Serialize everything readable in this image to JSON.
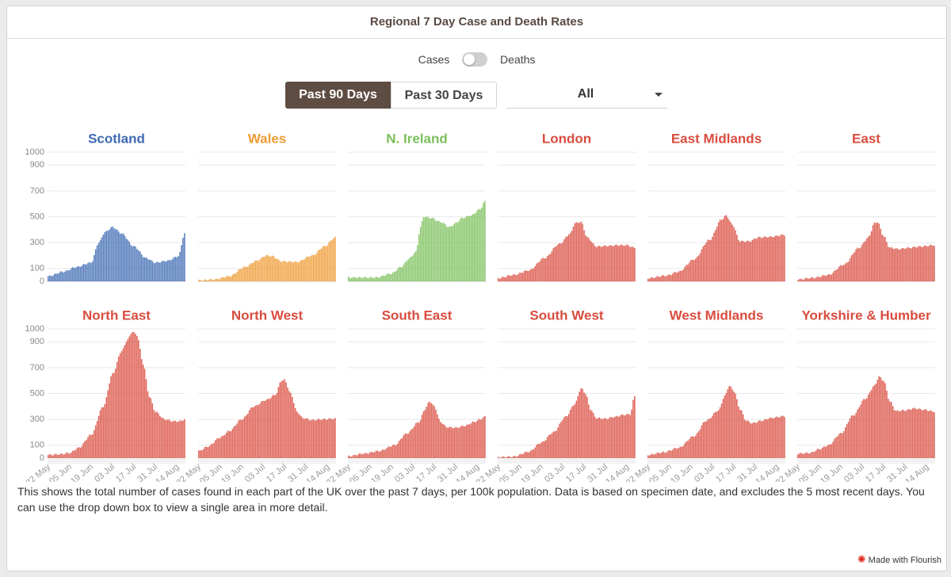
{
  "title": "Regional 7 Day Case and Death Rates",
  "toggle": {
    "left_label": "Cases",
    "right_label": "Deaths"
  },
  "buttons": {
    "active": "Past 90 Days",
    "inactive": "Past 30 Days"
  },
  "dropdown": {
    "value": "All"
  },
  "description": "This shows the total number of cases found in each part of the UK over the past 7 days, per 100k population. Data is based on specimen date, and excludes the 5 most recent days. You can use the drop down box to view a single area in more detail.",
  "footer": "Made with Flourish",
  "chart_data": {
    "type": "bar",
    "ylim": [
      0,
      1000
    ],
    "y_ticks": [
      0,
      100,
      300,
      500,
      700,
      900,
      1000
    ],
    "x_ticks": [
      "22 May",
      "05 Jun",
      "19 Jun",
      "03 Jul",
      "17 Jul",
      "31 Jul",
      "14 Aug"
    ],
    "x_tick_days": [
      0,
      14,
      28,
      42,
      56,
      70,
      84
    ],
    "n_days": 90,
    "panels": [
      {
        "name": "Scotland",
        "color": "#3d6ab3",
        "keypoints": [
          [
            0,
            40
          ],
          [
            10,
            75
          ],
          [
            18,
            110
          ],
          [
            28,
            145
          ],
          [
            33,
            300
          ],
          [
            37,
            380
          ],
          [
            42,
            420
          ],
          [
            48,
            370
          ],
          [
            56,
            270
          ],
          [
            64,
            180
          ],
          [
            70,
            145
          ],
          [
            78,
            160
          ],
          [
            85,
            195
          ],
          [
            89,
            370
          ]
        ]
      },
      {
        "name": "Wales",
        "color": "#ef9a31",
        "keypoints": [
          [
            0,
            8
          ],
          [
            10,
            15
          ],
          [
            20,
            40
          ],
          [
            30,
            110
          ],
          [
            38,
            160
          ],
          [
            44,
            200
          ],
          [
            48,
            195
          ],
          [
            54,
            155
          ],
          [
            64,
            150
          ],
          [
            74,
            200
          ],
          [
            82,
            270
          ],
          [
            89,
            340
          ]
        ]
      },
      {
        "name": "N. Ireland",
        "color": "#7bbf5b",
        "keypoints": [
          [
            0,
            30
          ],
          [
            18,
            30
          ],
          [
            28,
            60
          ],
          [
            34,
            110
          ],
          [
            40,
            180
          ],
          [
            44,
            230
          ],
          [
            47,
            420
          ],
          [
            49,
            500
          ],
          [
            54,
            490
          ],
          [
            60,
            460
          ],
          [
            66,
            420
          ],
          [
            70,
            450
          ],
          [
            74,
            490
          ],
          [
            80,
            510
          ],
          [
            86,
            560
          ],
          [
            89,
            620
          ]
        ]
      },
      {
        "name": "London",
        "color": "#d94c3f",
        "keypoints": [
          [
            0,
            25
          ],
          [
            10,
            50
          ],
          [
            20,
            85
          ],
          [
            30,
            180
          ],
          [
            40,
            290
          ],
          [
            47,
            370
          ],
          [
            50,
            450
          ],
          [
            54,
            460
          ],
          [
            58,
            340
          ],
          [
            64,
            270
          ],
          [
            72,
            275
          ],
          [
            78,
            280
          ],
          [
            84,
            280
          ],
          [
            89,
            260
          ]
        ]
      },
      {
        "name": "East Midlands",
        "color": "#d94c3f",
        "keypoints": [
          [
            0,
            25
          ],
          [
            12,
            45
          ],
          [
            20,
            75
          ],
          [
            30,
            170
          ],
          [
            40,
            320
          ],
          [
            48,
            480
          ],
          [
            51,
            510
          ],
          [
            55,
            440
          ],
          [
            60,
            310
          ],
          [
            66,
            310
          ],
          [
            72,
            340
          ],
          [
            80,
            345
          ],
          [
            89,
            360
          ]
        ]
      },
      {
        "name": "East",
        "color": "#d94c3f",
        "keypoints": [
          [
            0,
            15
          ],
          [
            10,
            28
          ],
          [
            20,
            50
          ],
          [
            30,
            130
          ],
          [
            40,
            260
          ],
          [
            46,
            340
          ],
          [
            50,
            450
          ],
          [
            52,
            460
          ],
          [
            56,
            350
          ],
          [
            60,
            260
          ],
          [
            66,
            250
          ],
          [
            72,
            260
          ],
          [
            80,
            270
          ],
          [
            89,
            280
          ]
        ]
      },
      {
        "name": "North East",
        "color": "#d94c3f",
        "keypoints": [
          [
            0,
            25
          ],
          [
            8,
            30
          ],
          [
            14,
            40
          ],
          [
            20,
            80
          ],
          [
            28,
            180
          ],
          [
            36,
            400
          ],
          [
            42,
            650
          ],
          [
            48,
            830
          ],
          [
            52,
            920
          ],
          [
            55,
            980
          ],
          [
            58,
            950
          ],
          [
            62,
            730
          ],
          [
            66,
            480
          ],
          [
            70,
            360
          ],
          [
            76,
            300
          ],
          [
            82,
            285
          ],
          [
            86,
            285
          ],
          [
            89,
            300
          ]
        ]
      },
      {
        "name": "North West",
        "color": "#d94c3f",
        "keypoints": [
          [
            0,
            55
          ],
          [
            6,
            90
          ],
          [
            14,
            160
          ],
          [
            20,
            210
          ],
          [
            28,
            300
          ],
          [
            36,
            400
          ],
          [
            44,
            450
          ],
          [
            50,
            490
          ],
          [
            54,
            600
          ],
          [
            56,
            605
          ],
          [
            60,
            500
          ],
          [
            64,
            360
          ],
          [
            68,
            310
          ],
          [
            74,
            295
          ],
          [
            80,
            300
          ],
          [
            89,
            305
          ]
        ]
      },
      {
        "name": "South East",
        "color": "#d94c3f",
        "keypoints": [
          [
            0,
            15
          ],
          [
            10,
            35
          ],
          [
            20,
            55
          ],
          [
            30,
            100
          ],
          [
            38,
            190
          ],
          [
            46,
            280
          ],
          [
            50,
            380
          ],
          [
            53,
            440
          ],
          [
            56,
            400
          ],
          [
            60,
            280
          ],
          [
            64,
            240
          ],
          [
            70,
            235
          ],
          [
            76,
            250
          ],
          [
            82,
            280
          ],
          [
            86,
            300
          ],
          [
            89,
            320
          ]
        ]
      },
      {
        "name": "South West",
        "color": "#d94c3f",
        "keypoints": [
          [
            0,
            8
          ],
          [
            10,
            12
          ],
          [
            20,
            50
          ],
          [
            28,
            120
          ],
          [
            36,
            200
          ],
          [
            44,
            320
          ],
          [
            50,
            420
          ],
          [
            54,
            540
          ],
          [
            57,
            500
          ],
          [
            60,
            380
          ],
          [
            64,
            310
          ],
          [
            70,
            305
          ],
          [
            76,
            320
          ],
          [
            82,
            335
          ],
          [
            86,
            340
          ],
          [
            89,
            480
          ]
        ]
      },
      {
        "name": "West Midlands",
        "color": "#d94c3f",
        "keypoints": [
          [
            0,
            25
          ],
          [
            10,
            45
          ],
          [
            20,
            80
          ],
          [
            30,
            170
          ],
          [
            38,
            290
          ],
          [
            46,
            370
          ],
          [
            50,
            480
          ],
          [
            53,
            560
          ],
          [
            56,
            520
          ],
          [
            60,
            380
          ],
          [
            64,
            290
          ],
          [
            68,
            270
          ],
          [
            74,
            290
          ],
          [
            80,
            310
          ],
          [
            89,
            325
          ]
        ]
      },
      {
        "name": "Yorkshire & Humber",
        "color": "#d94c3f",
        "keypoints": [
          [
            0,
            35
          ],
          [
            8,
            40
          ],
          [
            14,
            70
          ],
          [
            20,
            100
          ],
          [
            28,
            190
          ],
          [
            36,
            330
          ],
          [
            44,
            460
          ],
          [
            50,
            560
          ],
          [
            53,
            630
          ],
          [
            56,
            600
          ],
          [
            60,
            440
          ],
          [
            64,
            365
          ],
          [
            70,
            370
          ],
          [
            76,
            385
          ],
          [
            82,
            375
          ],
          [
            89,
            360
          ]
        ]
      }
    ]
  }
}
